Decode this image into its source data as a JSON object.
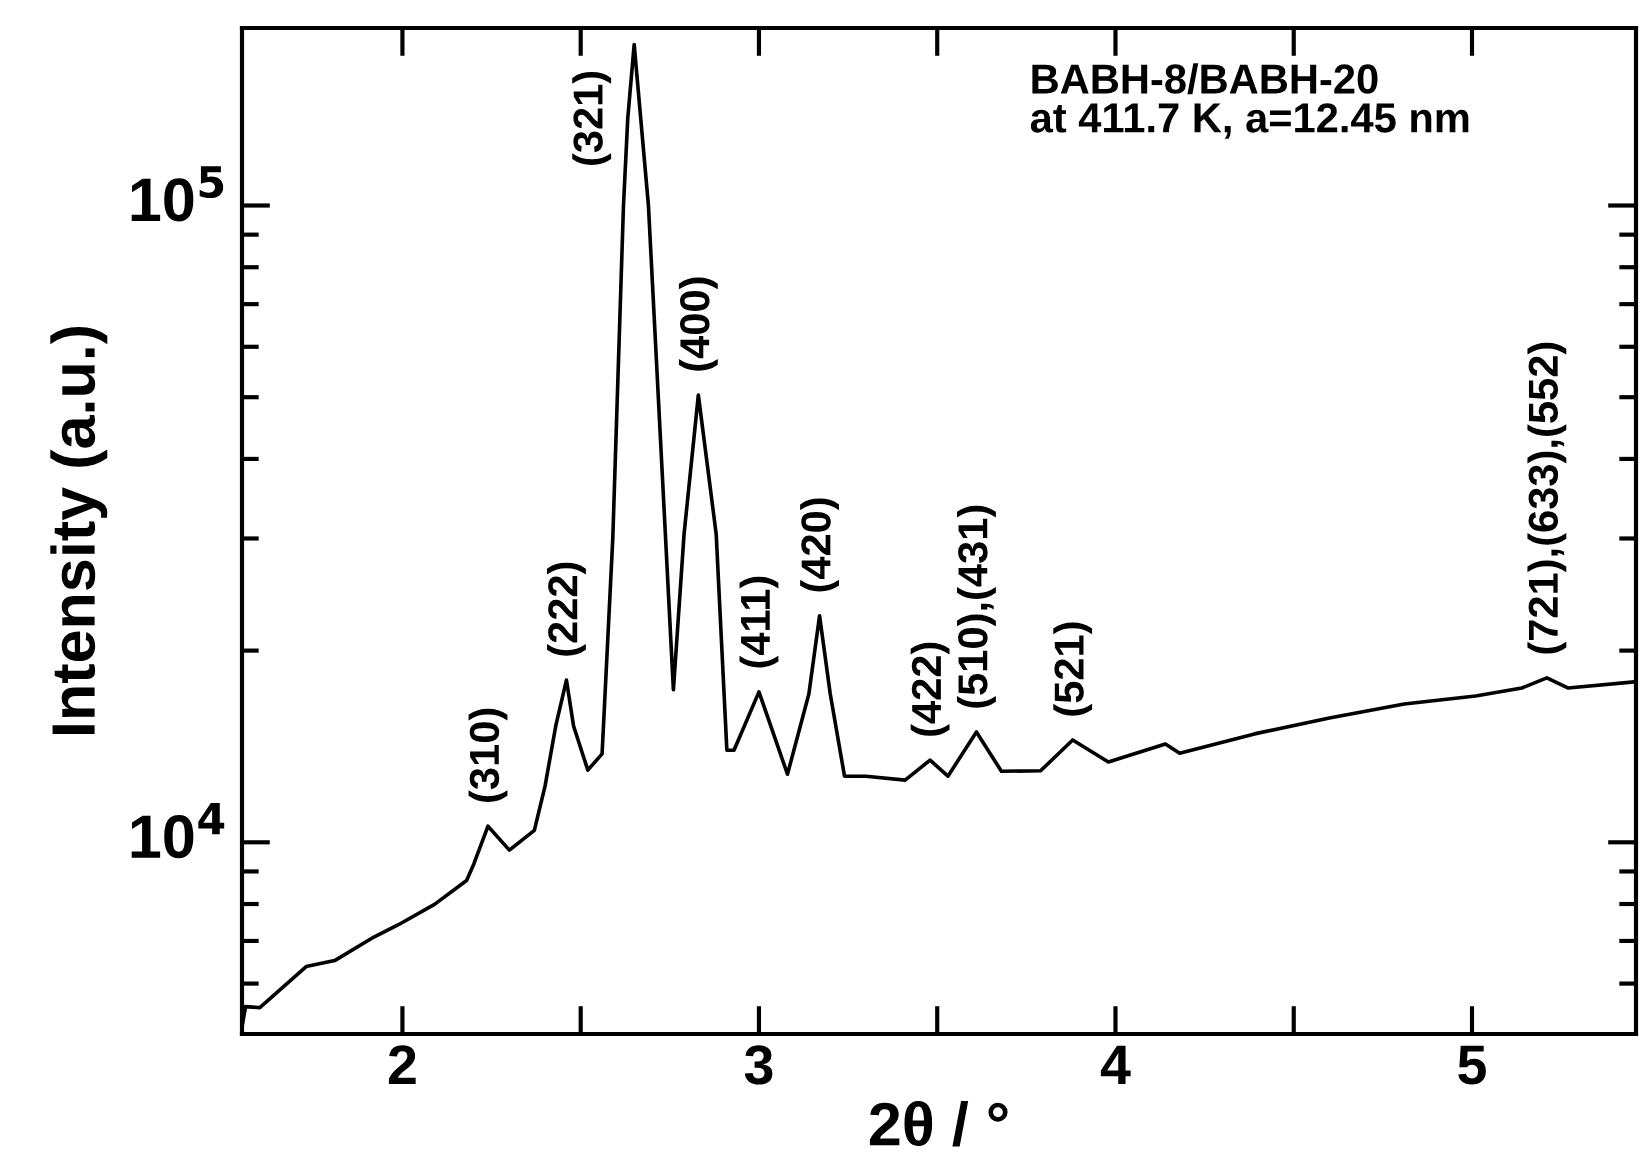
{
  "chart_data": {
    "type": "line",
    "title": "BABH-8/BABH-20\nat 411.7 K, a=12.45 nm",
    "xlabel": "2θ / °",
    "ylabel": "Intensity (a.u.)",
    "log": "y",
    "grid": false,
    "marker": "none",
    "line_style": "solid",
    "xlim": [
      1.55,
      5.46
    ],
    "ylim": [
      5000,
      190000
    ],
    "xticks": [
      2,
      {
        "value": 2.5,
        "label": null
      },
      3,
      {
        "value": 3.5,
        "label": null
      },
      4,
      {
        "value": 4.5,
        "label": null
      },
      5
    ],
    "yticks": [
      {
        "value": 6000,
        "label": null
      },
      {
        "value": 7000,
        "label": null
      },
      {
        "value": 8000,
        "label": null
      },
      {
        "value": 9000,
        "label": null
      },
      {
        "value": 10000,
        "label": "10$^{4}$"
      },
      {
        "value": 20000,
        "label": null
      },
      {
        "value": 30000,
        "label": null
      },
      {
        "value": 40000,
        "label": null
      },
      {
        "value": 50000,
        "label": null
      },
      {
        "value": 60000,
        "label": null
      },
      {
        "value": 70000,
        "label": null
      },
      {
        "value": 80000,
        "label": null
      },
      {
        "value": 90000,
        "label": null
      },
      {
        "value": 100000,
        "label": "10$^{5}$"
      }
    ],
    "series": [
      {
        "color": "#000000",
        "x": [
          1.55,
          1.56,
          1.6,
          1.73,
          1.81,
          1.92,
          1.99,
          2.09,
          2.18,
          2.2,
          2.24,
          2.3,
          2.37,
          2.4,
          2.43,
          2.46,
          2.48,
          2.52,
          2.56,
          2.59,
          2.62,
          2.632,
          2.65,
          2.69,
          2.76,
          2.79,
          2.83,
          2.88,
          2.91,
          2.93,
          3.0,
          3.08,
          3.14,
          3.17,
          3.2,
          3.24,
          3.3,
          3.41,
          3.48,
          3.53,
          3.61,
          3.68,
          3.79,
          3.88,
          3.98,
          4.14,
          4.18,
          4.39,
          4.6,
          4.81,
          5.01,
          5.14,
          5.21,
          5.27,
          5.45
        ],
        "values": [
          5130,
          5520,
          5500,
          6380,
          6520,
          7100,
          7430,
          7990,
          8710,
          9240,
          10600,
          9720,
          10440,
          12250,
          15230,
          17980,
          15230,
          12980,
          13770,
          30000,
          100000,
          137000,
          179000,
          100000,
          17360,
          30500,
          50400,
          30500,
          13950,
          13950,
          17230,
          12790,
          17100,
          22680,
          17100,
          12700,
          12700,
          12520,
          13460,
          12700,
          14900,
          12930,
          12950,
          14480,
          13370,
          14270,
          13800,
          14800,
          15670,
          16490,
          16970,
          17470,
          18120,
          17470,
          17850
        ]
      }
    ],
    "annotations": [
      {
        "text": "(310)",
        "x": 2.24,
        "y": 10600
      },
      {
        "text": "(222)",
        "x": 2.46,
        "y": 17980
      },
      {
        "text": "(321)",
        "x": 2.632,
        "y": 137000
      },
      {
        "text": "(400)",
        "x": 2.83,
        "y": 50400
      },
      {
        "text": "(411)",
        "x": 3.0,
        "y": 17230
      },
      {
        "text": "(420)",
        "x": 3.17,
        "y": 22680
      },
      {
        "text": "(422)",
        "x": 3.48,
        "y": 13460
      },
      {
        "text": "(510),(431)",
        "x": 3.61,
        "y": 14900
      },
      {
        "text": "(521)",
        "x": 3.88,
        "y": 14480
      },
      {
        "text": "(721),(633),(552)",
        "x": 5.21,
        "y": 18120
      }
    ]
  }
}
